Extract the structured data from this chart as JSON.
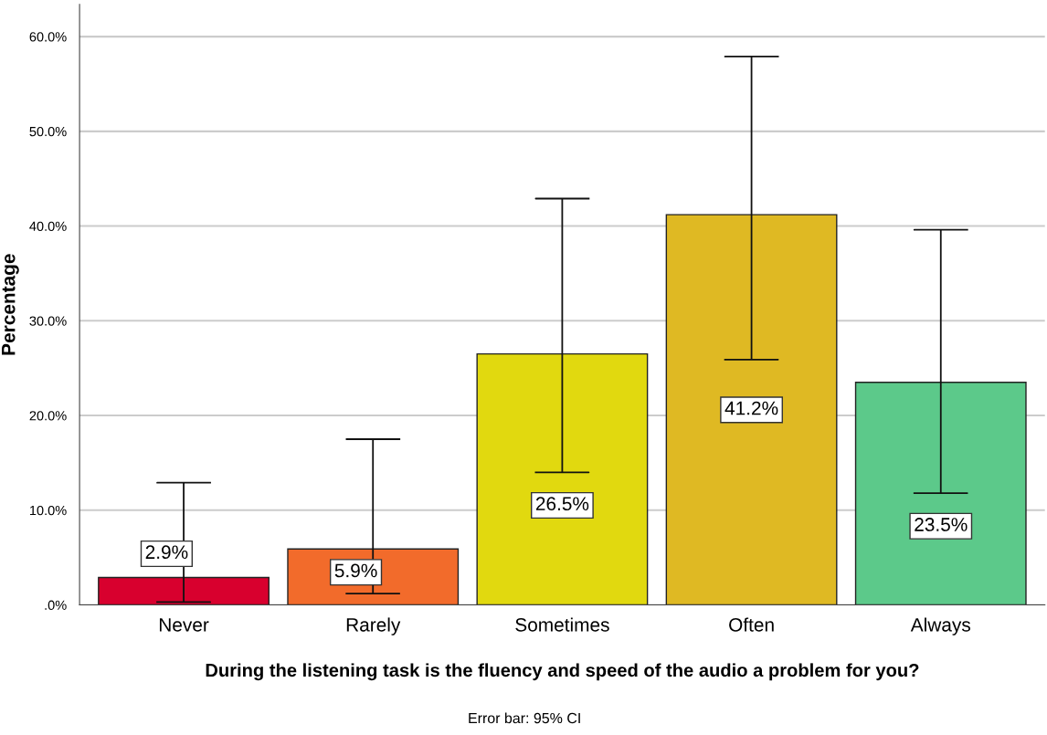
{
  "chart_data": {
    "type": "bar",
    "xlabel": "During the listening task is the fluency and speed of the audio a problem for you?",
    "ylabel": "Percentage",
    "categories": [
      "Never",
      "Rarely",
      "Sometimes",
      "Often",
      "Always"
    ],
    "values": [
      2.9,
      5.9,
      26.5,
      41.2,
      23.5
    ],
    "value_labels": [
      "2.9%",
      "5.9%",
      "26.5%",
      "41.2%",
      "23.5%"
    ],
    "colors": [
      "#d8002e",
      "#f26b2b",
      "#e1d90f",
      "#dfb923",
      "#5cc98a"
    ],
    "errors": [
      [
        0.3,
        12.9
      ],
      [
        1.2,
        17.5
      ],
      [
        14.0,
        42.9
      ],
      [
        25.9,
        57.9
      ],
      [
        11.8,
        39.6
      ]
    ],
    "ylim": [
      0,
      63.4
    ],
    "yticks": [
      {
        "value": 0,
        "label": ".0%"
      },
      {
        "value": 10,
        "label": "10.0%"
      },
      {
        "value": 20,
        "label": "20.0%"
      },
      {
        "value": 30,
        "label": "30.0%"
      },
      {
        "value": 40,
        "label": "40.0%"
      },
      {
        "value": 50,
        "label": "50.0%"
      },
      {
        "value": 60,
        "label": "60.0%"
      }
    ],
    "grid": "y",
    "annotations": [
      "Error bar: 95% CI"
    ]
  }
}
